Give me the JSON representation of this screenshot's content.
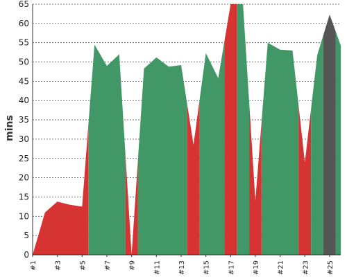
{
  "chart_data": {
    "type": "area",
    "ylabel": "mins",
    "ylim": [
      0,
      65
    ],
    "yticks": [
      0,
      5,
      10,
      15,
      20,
      25,
      30,
      35,
      40,
      45,
      50,
      55,
      60,
      65
    ],
    "xtick_labels": [
      "#1",
      "#3",
      "#5",
      "#7",
      "#9",
      "#11",
      "#13",
      "#15",
      "#17",
      "#19",
      "#21",
      "#23",
      "#25"
    ],
    "xlim": [
      1,
      25.9
    ],
    "grid": true,
    "colors": {
      "red": "#d63333",
      "green": "#419866",
      "gray": "#555555"
    },
    "x": [
      1,
      2,
      3,
      4,
      5,
      6,
      7,
      8,
      9,
      10,
      11,
      12,
      13,
      14,
      15,
      16,
      17,
      18,
      19,
      20,
      21,
      22,
      23,
      24,
      25,
      25.9
    ],
    "values": [
      0,
      11,
      13.8,
      13,
      12.5,
      54.5,
      49,
      52,
      0,
      48.3,
      51.2,
      48.8,
      49.2,
      28.5,
      52.3,
      45.8,
      65,
      65,
      14,
      55,
      53.2,
      53,
      24,
      51.8,
      62.3,
      54.3
    ],
    "segments": [
      {
        "from": 1,
        "to": 5.5,
        "color": "red"
      },
      {
        "from": 5.5,
        "to": 8.5,
        "color": "green"
      },
      {
        "from": 8.5,
        "to": 9.5,
        "color": "red"
      },
      {
        "from": 9.5,
        "to": 13.5,
        "color": "green"
      },
      {
        "from": 13.5,
        "to": 14.5,
        "color": "red"
      },
      {
        "from": 14.5,
        "to": 16.5,
        "color": "green"
      },
      {
        "from": 16.5,
        "to": 17.5,
        "color": "red"
      },
      {
        "from": 17.5,
        "to": 18.5,
        "color": "green"
      },
      {
        "from": 18.5,
        "to": 19.5,
        "color": "red"
      },
      {
        "from": 19.5,
        "to": 22.5,
        "color": "green"
      },
      {
        "from": 22.5,
        "to": 23.5,
        "color": "red"
      },
      {
        "from": 23.5,
        "to": 24.5,
        "color": "green"
      },
      {
        "from": 24.5,
        "to": 25.5,
        "color": "gray"
      },
      {
        "from": 25.5,
        "to": 25.9,
        "color": "green"
      }
    ]
  }
}
